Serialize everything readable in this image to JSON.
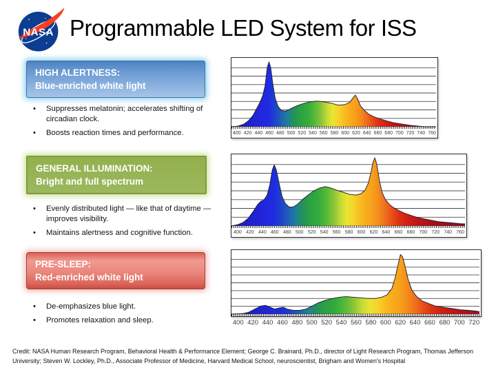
{
  "slide": {
    "title": "Programmable LED System for ISS",
    "logo_text": "NASA",
    "credit": "Credit: NASA Human Research Program, Behavioral Health & Performance Element; George C. Brainard, Ph.D., director of Light Research Program, Thomas Jefferson University; Steven W. Lockley, Ph.D., Associate Professor of Medicine, Harvard Medical School, neuroscientist, Brigham and Women's Hospital",
    "background_color": "#ffffff"
  },
  "sections": [
    {
      "header_line1": "HIGH ALERTNESS:",
      "header_line2": "Blue-enriched white light",
      "accent": "#6e9cd4",
      "bullets": [
        "Suppresses melatonin; accelerates shifting of circadian clock.",
        "Boosts reaction times and performance."
      ]
    },
    {
      "header_line1": "GENERAL ILLUMINATION:",
      "header_line2": "Bright and full spectrum",
      "accent": "#95b254",
      "bullets": [
        "Evenly distributed light — like that of daytime — improves visibility.",
        "Maintains alertness and cognitive function."
      ]
    },
    {
      "header_line1": "PRE-SLEEP:",
      "header_line2": "Red-enriched white light",
      "accent": "#e2776d",
      "bullets": [
        "De-emphasizes blue light.",
        "Promotes relaxation and sleep."
      ]
    }
  ],
  "chart_data": [
    {
      "type": "area",
      "name": "high-alertness-spectrum",
      "x_range": [
        400,
        760
      ],
      "ylim": [
        0,
        1
      ],
      "grid": "horizontal, 8 rows",
      "tick_labels": [
        "400",
        "420",
        "440",
        "460",
        "480",
        "500",
        "520",
        "540",
        "560",
        "580",
        "600",
        "620",
        "640",
        "660",
        "680",
        "700",
        "720",
        "740",
        "760"
      ],
      "points": [
        [
          400,
          0
        ],
        [
          412,
          0.01
        ],
        [
          422,
          0.04
        ],
        [
          430,
          0.09
        ],
        [
          438,
          0.17
        ],
        [
          445,
          0.28
        ],
        [
          450,
          0.36
        ],
        [
          455,
          0.46
        ],
        [
          459,
          0.6
        ],
        [
          463,
          0.88
        ],
        [
          466,
          0.96
        ],
        [
          469,
          0.88
        ],
        [
          473,
          0.62
        ],
        [
          477,
          0.42
        ],
        [
          482,
          0.3
        ],
        [
          488,
          0.24
        ],
        [
          495,
          0.23
        ],
        [
          505,
          0.27
        ],
        [
          515,
          0.31
        ],
        [
          525,
          0.34
        ],
        [
          538,
          0.37
        ],
        [
          550,
          0.38
        ],
        [
          562,
          0.37
        ],
        [
          575,
          0.35
        ],
        [
          588,
          0.32
        ],
        [
          600,
          0.33
        ],
        [
          608,
          0.36
        ],
        [
          614,
          0.43
        ],
        [
          618,
          0.47
        ],
        [
          622,
          0.41
        ],
        [
          627,
          0.31
        ],
        [
          633,
          0.25
        ],
        [
          641,
          0.19
        ],
        [
          650,
          0.15
        ],
        [
          660,
          0.12
        ],
        [
          672,
          0.09
        ],
        [
          685,
          0.06
        ],
        [
          700,
          0.04
        ],
        [
          715,
          0.02
        ],
        [
          728,
          0.01
        ],
        [
          740,
          0
        ],
        [
          760,
          0
        ]
      ]
    },
    {
      "type": "area",
      "name": "general-illumination-spectrum",
      "x_range": [
        400,
        760
      ],
      "ylim": [
        0,
        1
      ],
      "grid": "horizontal, 8 rows",
      "tick_labels": [
        "400",
        "420",
        "440",
        "460",
        "480",
        "500",
        "520",
        "540",
        "560",
        "580",
        "600",
        "620",
        "640",
        "660",
        "680",
        "700",
        "720",
        "740",
        "760"
      ],
      "points": [
        [
          400,
          0
        ],
        [
          410,
          0.02
        ],
        [
          418,
          0.05
        ],
        [
          426,
          0.11
        ],
        [
          433,
          0.2
        ],
        [
          440,
          0.3
        ],
        [
          445,
          0.35
        ],
        [
          450,
          0.37
        ],
        [
          455,
          0.44
        ],
        [
          459,
          0.58
        ],
        [
          463,
          0.8
        ],
        [
          466,
          0.87
        ],
        [
          469,
          0.8
        ],
        [
          474,
          0.58
        ],
        [
          478,
          0.42
        ],
        [
          483,
          0.32
        ],
        [
          489,
          0.27
        ],
        [
          495,
          0.27
        ],
        [
          502,
          0.31
        ],
        [
          510,
          0.38
        ],
        [
          518,
          0.44
        ],
        [
          527,
          0.5
        ],
        [
          536,
          0.54
        ],
        [
          545,
          0.56
        ],
        [
          553,
          0.54
        ],
        [
          562,
          0.51
        ],
        [
          572,
          0.48
        ],
        [
          582,
          0.45
        ],
        [
          592,
          0.44
        ],
        [
          600,
          0.46
        ],
        [
          606,
          0.51
        ],
        [
          611,
          0.61
        ],
        [
          615,
          0.76
        ],
        [
          618,
          0.9
        ],
        [
          621,
          0.97
        ],
        [
          624,
          0.88
        ],
        [
          628,
          0.65
        ],
        [
          632,
          0.48
        ],
        [
          637,
          0.38
        ],
        [
          643,
          0.31
        ],
        [
          650,
          0.26
        ],
        [
          658,
          0.22
        ],
        [
          667,
          0.18
        ],
        [
          677,
          0.15
        ],
        [
          687,
          0.12
        ],
        [
          697,
          0.1
        ],
        [
          708,
          0.08
        ],
        [
          720,
          0.06
        ],
        [
          732,
          0.05
        ],
        [
          744,
          0.04
        ],
        [
          755,
          0.03
        ],
        [
          760,
          0.03
        ]
      ]
    },
    {
      "type": "area",
      "name": "pre-sleep-spectrum",
      "x_range": [
        400,
        720
      ],
      "ylim": [
        0,
        1
      ],
      "grid": "horizontal, 8 rows",
      "tick_labels": [
        "400",
        "420",
        "440",
        "460",
        "480",
        "500",
        "520",
        "540",
        "560",
        "580",
        "600",
        "620",
        "640",
        "660",
        "680",
        "700",
        "720"
      ],
      "points": [
        [
          400,
          0
        ],
        [
          415,
          0.01
        ],
        [
          422,
          0.03
        ],
        [
          430,
          0.08
        ],
        [
          438,
          0.13
        ],
        [
          444,
          0.14
        ],
        [
          450,
          0.11
        ],
        [
          456,
          0.08
        ],
        [
          462,
          0.1
        ],
        [
          467,
          0.11
        ],
        [
          472,
          0.08
        ],
        [
          480,
          0.06
        ],
        [
          488,
          0.06
        ],
        [
          496,
          0.08
        ],
        [
          504,
          0.13
        ],
        [
          512,
          0.18
        ],
        [
          521,
          0.22
        ],
        [
          530,
          0.25
        ],
        [
          540,
          0.27
        ],
        [
          548,
          0.28
        ],
        [
          556,
          0.27
        ],
        [
          566,
          0.26
        ],
        [
          576,
          0.25
        ],
        [
          586,
          0.25
        ],
        [
          594,
          0.27
        ],
        [
          601,
          0.31
        ],
        [
          607,
          0.41
        ],
        [
          611,
          0.57
        ],
        [
          615,
          0.79
        ],
        [
          618,
          0.95
        ],
        [
          621,
          0.91
        ],
        [
          624,
          0.76
        ],
        [
          628,
          0.55
        ],
        [
          633,
          0.38
        ],
        [
          639,
          0.28
        ],
        [
          646,
          0.21
        ],
        [
          654,
          0.17
        ],
        [
          663,
          0.13
        ],
        [
          673,
          0.11
        ],
        [
          684,
          0.09
        ],
        [
          695,
          0.07
        ],
        [
          706,
          0.06
        ],
        [
          715,
          0.05
        ],
        [
          720,
          0.04
        ]
      ]
    }
  ],
  "spectrum_colors": [
    [
      400,
      "#2a149b"
    ],
    [
      430,
      "#2120cf"
    ],
    [
      452,
      "#2226dd"
    ],
    [
      466,
      "#1f2ce2"
    ],
    [
      478,
      "#1e46c9"
    ],
    [
      490,
      "#1e68b0"
    ],
    [
      500,
      "#1f8194"
    ],
    [
      510,
      "#249257"
    ],
    [
      520,
      "#2aa145"
    ],
    [
      534,
      "#33ab3c"
    ],
    [
      546,
      "#55b939"
    ],
    [
      558,
      "#8ac538"
    ],
    [
      568,
      "#c3da35"
    ],
    [
      578,
      "#e9e532"
    ],
    [
      588,
      "#f6d429"
    ],
    [
      598,
      "#f8bd21"
    ],
    [
      608,
      "#f8ab1d"
    ],
    [
      618,
      "#f7a01b"
    ],
    [
      628,
      "#f3891d"
    ],
    [
      638,
      "#ee6c1c"
    ],
    [
      648,
      "#e84e17"
    ],
    [
      658,
      "#de3214"
    ],
    [
      670,
      "#d22214"
    ],
    [
      685,
      "#c21616"
    ],
    [
      700,
      "#b31118"
    ],
    [
      720,
      "#a30e1d"
    ],
    [
      740,
      "#970d20"
    ],
    [
      760,
      "#8d0c22"
    ]
  ],
  "logo_colors": {
    "globe": "#0b3d91",
    "swoosh": "#fc3d21",
    "text": "#ffffff"
  }
}
